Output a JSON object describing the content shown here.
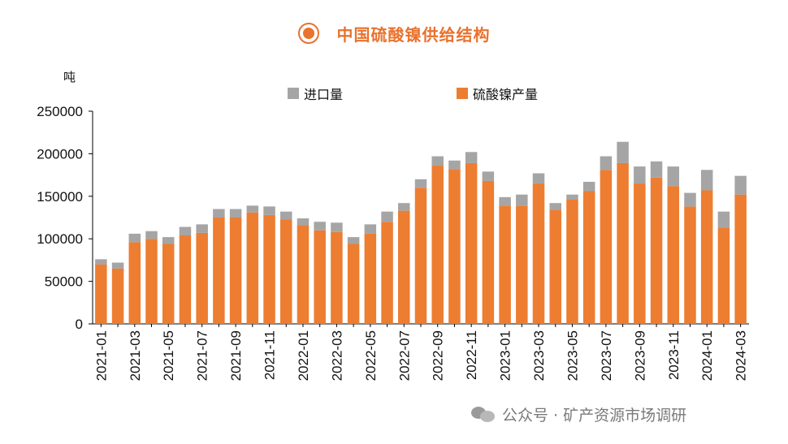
{
  "title": "中国硫酸镍供给结构",
  "colors": {
    "accent": "#E9722E",
    "production": "#ED7D31",
    "import": "#A5A5A5"
  },
  "watermark": "公众号 · 矿产资源市场调研",
  "chart_data": {
    "type": "bar",
    "stacked": true,
    "ylabel": "吨",
    "ylim": [
      0,
      250000
    ],
    "yticks": [
      0,
      50000,
      100000,
      150000,
      200000,
      250000
    ],
    "categories": [
      "2021-01",
      "2021-02",
      "2021-03",
      "2021-04",
      "2021-05",
      "2021-06",
      "2021-07",
      "2021-08",
      "2021-09",
      "2021-10",
      "2021-11",
      "2021-12",
      "2022-01",
      "2022-02",
      "2022-03",
      "2022-04",
      "2022-05",
      "2022-06",
      "2022-07",
      "2022-08",
      "2022-09",
      "2022-10",
      "2022-11",
      "2022-12",
      "2023-01",
      "2023-02",
      "2023-03",
      "2023-04",
      "2023-05",
      "2023-06",
      "2023-07",
      "2023-08",
      "2023-09",
      "2023-10",
      "2023-11",
      "2023-12",
      "2024-01",
      "2024-02",
      "2024-03"
    ],
    "xticklabels": [
      "2021-01",
      "2021-03",
      "2021-05",
      "2021-07",
      "2021-09",
      "2021-11",
      "2022-01",
      "2022-03",
      "2022-05",
      "2022-07",
      "2022-09",
      "2022-11",
      "2023-01",
      "2023-03",
      "2023-05",
      "2023-07",
      "2023-09",
      "2023-11",
      "2024-01",
      "2024-03"
    ],
    "legend_position": "top",
    "series": [
      {
        "name": "硫酸镍产量",
        "color": "#ED7D31",
        "values": [
          70000,
          65000,
          96000,
          100000,
          94000,
          104000,
          107000,
          125000,
          125000,
          131000,
          128000,
          123000,
          116000,
          110000,
          108000,
          94000,
          106000,
          120000,
          133000,
          160000,
          186000,
          182000,
          189000,
          168000,
          139000,
          139000,
          165000,
          134000,
          146000,
          156000,
          181000,
          189000,
          165000,
          172000,
          162000,
          138000,
          157000,
          113000,
          152000
        ]
      },
      {
        "name": "进口量",
        "color": "#A5A5A5",
        "values": [
          6000,
          7000,
          10000,
          9000,
          8000,
          10000,
          10000,
          10000,
          10000,
          8000,
          10000,
          9000,
          8000,
          10000,
          11000,
          8000,
          11000,
          12000,
          9000,
          10000,
          11000,
          10000,
          13000,
          11000,
          10000,
          13000,
          12000,
          8000,
          6000,
          11000,
          16000,
          25000,
          20000,
          19000,
          23000,
          16000,
          24000,
          19000,
          22000
        ]
      }
    ]
  }
}
